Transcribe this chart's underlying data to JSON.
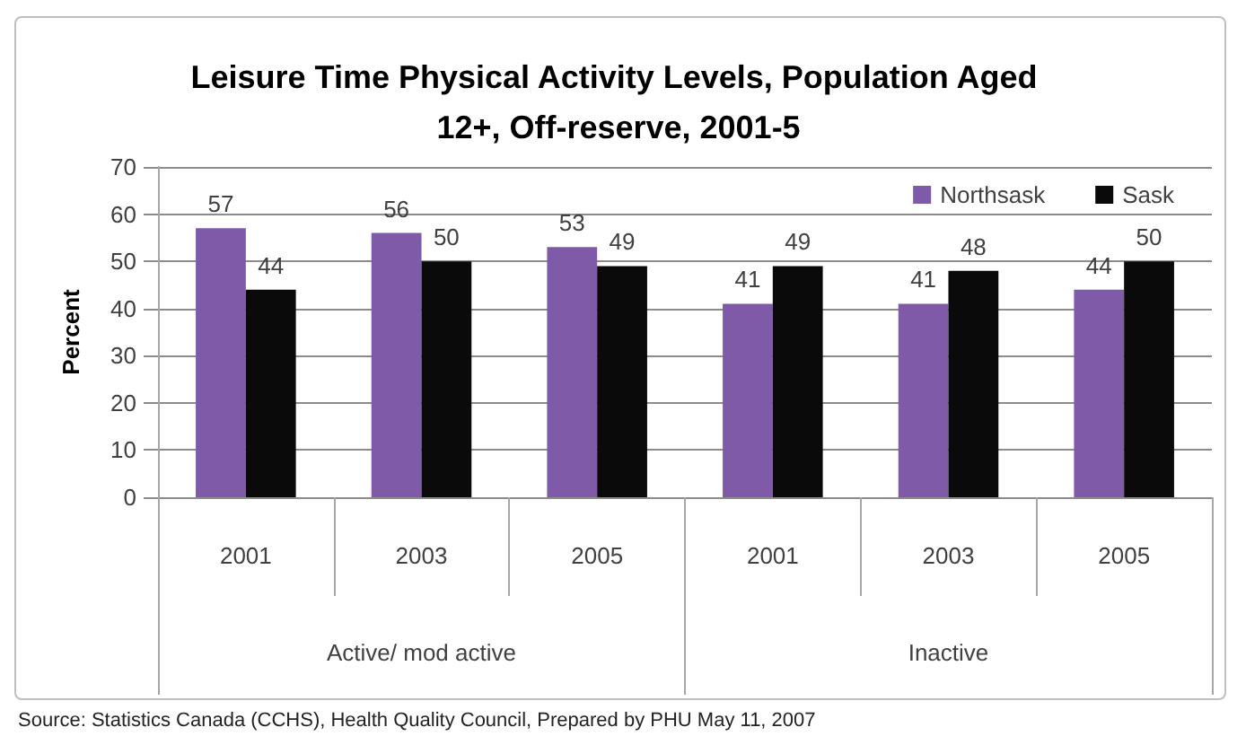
{
  "chart_data": {
    "type": "bar",
    "title": "Leisure Time Physical Activity Levels, Population Aged 12+, Off-reserve, 2001-5",
    "ylabel": "Percent",
    "categories": [
      "2001",
      "2003",
      "2005",
      "2001",
      "2003",
      "2005"
    ],
    "series": [
      {
        "name": "Northsask",
        "color": "#7f5aa8",
        "values": [
          57,
          56,
          53,
          41,
          41,
          44
        ]
      },
      {
        "name": "Sask",
        "color": "#0a0a0a",
        "values": [
          44,
          50,
          49,
          49,
          48,
          50
        ]
      }
    ],
    "ylim": [
      0,
      70
    ],
    "yticks": [
      0,
      10,
      20,
      30,
      40,
      50,
      60,
      70
    ],
    "grid": "y",
    "legend": "top right",
    "data_labels": true,
    "annotations": [
      "Active/ mod active",
      "Inactive",
      "Source: Statistics Canada (CCHS), Health Quality Council, Prepared by PHU May 11, 2007"
    ]
  }
}
